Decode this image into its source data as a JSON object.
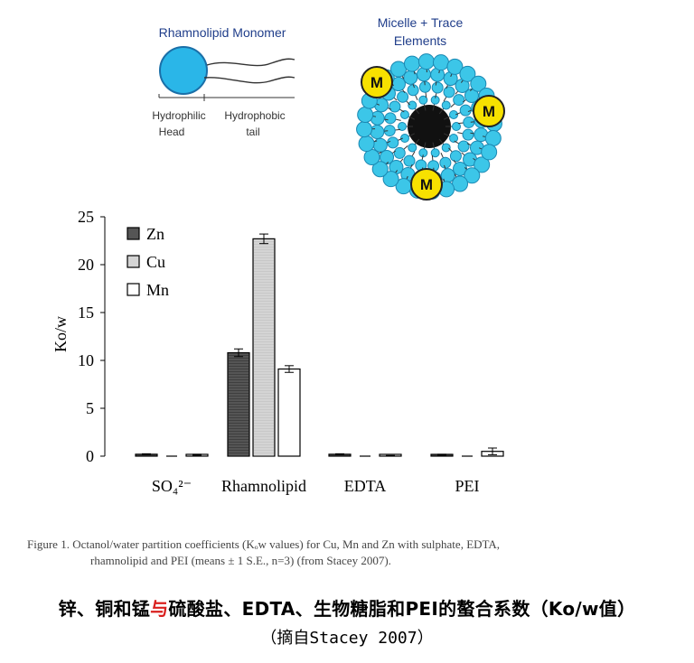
{
  "diagram": {
    "monomer_title": "Rhamnolipid Monomer",
    "head_label_1": "Hydrophilic",
    "head_label_2": "Head",
    "tail_label_1": "Hydrophobic",
    "tail_label_2": "tail",
    "micelle_title_1": "Micelle + Trace",
    "micelle_title_2": "Elements",
    "metal_label": "M",
    "colors": {
      "head": "#2ab6e8",
      "metal": "#f7e100",
      "title_blue": "#1f3d8a"
    }
  },
  "chart_data": {
    "type": "bar",
    "categories": [
      "SO₄²⁻",
      "Rhamnolipid",
      "EDTA",
      "PEI"
    ],
    "series": [
      {
        "name": "Zn",
        "values": [
          0.2,
          10.8,
          0.2,
          0.15
        ],
        "errors": [
          0.05,
          0.4,
          0.05,
          0.05
        ]
      },
      {
        "name": "Cu",
        "values": [
          0,
          22.7,
          0,
          0
        ],
        "errors": [
          0,
          0.5,
          0,
          0
        ]
      },
      {
        "name": "Mn",
        "values": [
          0.15,
          9.1,
          0.05,
          0.5
        ],
        "errors": [
          0.05,
          0.35,
          0.02,
          0.35
        ]
      }
    ],
    "ylabel": "Ko/w",
    "ylim": [
      0,
      25
    ],
    "yticks": [
      "0",
      "5",
      "10",
      "15",
      "20",
      "25"
    ],
    "legend_position": "top-left",
    "colors": {
      "Zn": "#555555",
      "Cu": "#d4d4d4",
      "Mn": "#ffffff"
    }
  },
  "caption": {
    "line1": "Figure 1. Octanol/water partition coefficients (Kₒw values) for Cu, Mn and Zn with sulphate, EDTA,",
    "line2": "rhamnolipid and PEI (means ± 1 S.E., n=3) (from Stacey 2007)."
  },
  "title": {
    "part1": "锌、铜和锰",
    "highlight": "与",
    "part2": "硫酸盐、EDTA、生物糖脂和PEI的螯合系数（Ko/w值）"
  },
  "subtitle": "（摘自Stacey 2007）"
}
